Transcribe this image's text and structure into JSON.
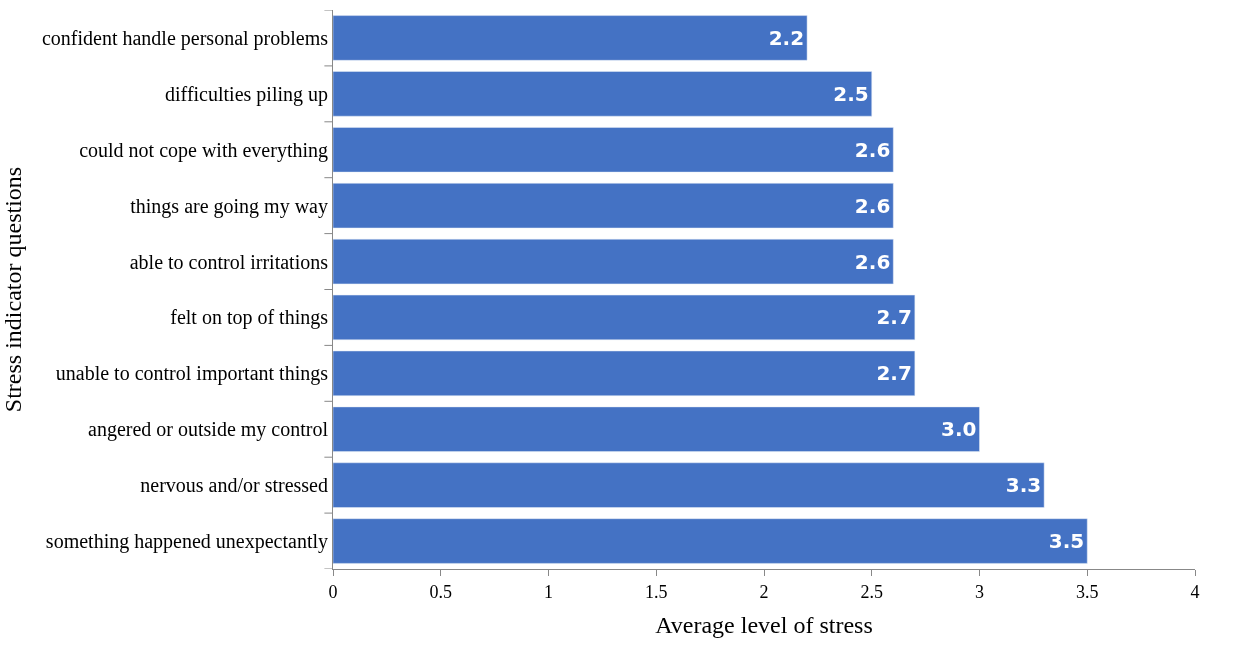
{
  "chart_data": {
    "type": "bar",
    "orientation": "horizontal",
    "xlabel": "Average level of stress",
    "ylabel": "Stress indicator questions",
    "categories": [
      "confident handle personal problems",
      "difficulties piling up",
      "could not cope with everything",
      "things are going my way",
      "able to control irritations",
      "felt on top of things",
      "unable to control important things",
      "angered or outside my control",
      "nervous and/or stressed",
      "something happened unexpectantly"
    ],
    "values": [
      2.2,
      2.5,
      2.6,
      2.6,
      2.6,
      2.7,
      2.7,
      3.0,
      3.3,
      3.5
    ],
    "value_labels": [
      "2.2",
      "2.5",
      "2.6",
      "2.6",
      "2.6",
      "2.7",
      "2.7",
      "3.0",
      "3.3",
      "3.5"
    ],
    "color": "#4472c4",
    "xlim": [
      0,
      4
    ],
    "xticks": [
      0,
      0.5,
      1,
      1.5,
      2,
      2.5,
      3,
      3.5,
      4
    ],
    "legend": false
  }
}
